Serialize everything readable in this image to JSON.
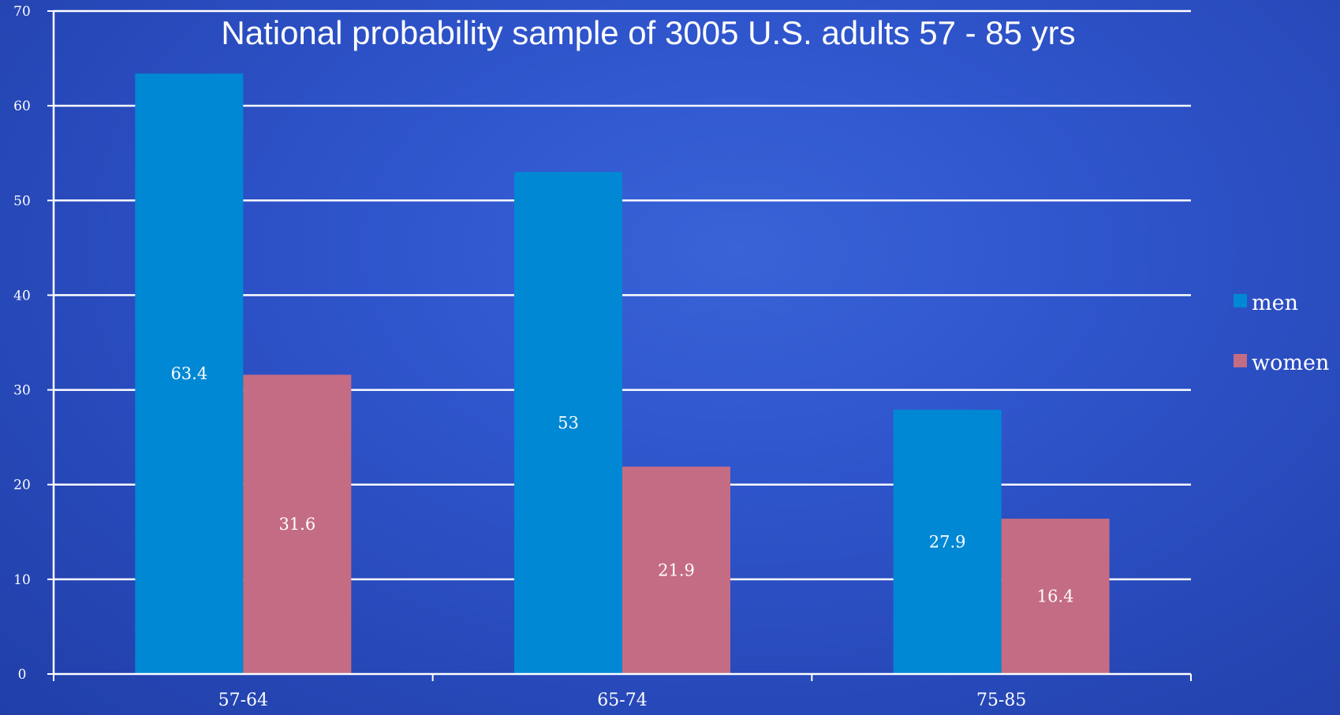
{
  "chart_data": {
    "type": "bar",
    "title": "National probability sample of 3005 U.S. adults 57 - 85 yrs",
    "xlabel": "",
    "ylabel": "",
    "categories": [
      "57-64",
      "65-74",
      "75-85"
    ],
    "series": [
      {
        "name": "men",
        "values": [
          63.4,
          53,
          27.9
        ],
        "color": "#0088d4"
      },
      {
        "name": "women",
        "values": [
          31.6,
          21.9,
          16.4
        ],
        "color": "#c46c84"
      }
    ],
    "value_labels": {
      "men": [
        "63.4",
        "53",
        "27.9"
      ],
      "women": [
        "31.6",
        "21.9",
        "16.4"
      ]
    },
    "ylim": [
      0,
      70
    ],
    "yticks": [
      "0",
      "10",
      "20",
      "30",
      "40",
      "50",
      "60",
      "70"
    ],
    "grid": true,
    "legend_position": "right"
  },
  "colors": {
    "background": "#2f55cc",
    "gridline": "#ffffff",
    "text": "#ffffff"
  }
}
